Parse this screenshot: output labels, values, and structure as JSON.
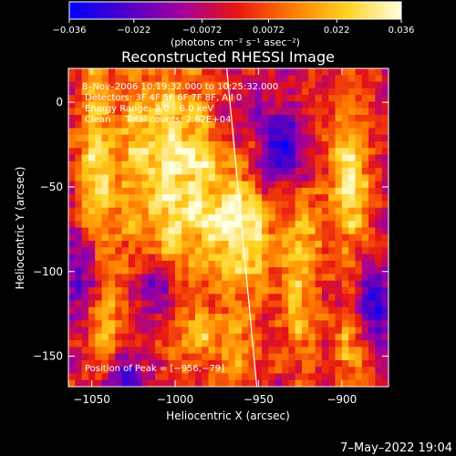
{
  "chart_data": {
    "type": "heatmap",
    "title": "Reconstructed RHESSI Image",
    "xlabel": "Heliocentric X (arcsec)",
    "ylabel": "Heliocentric Y (arcsec)",
    "xlim": [
      -1064,
      -872
    ],
    "ylim": [
      -168,
      20
    ],
    "x_ticks": [
      -1050,
      -1000,
      -950,
      -900
    ],
    "x_tick_labels": [
      "−1050",
      "−1000",
      "−950",
      "−900"
    ],
    "y_ticks": [
      0,
      -50,
      -100,
      -150
    ],
    "y_tick_labels": [
      "0",
      "−50",
      "−100",
      "−150"
    ],
    "colorbar": {
      "range": [
        -0.036,
        0.036
      ],
      "ticks": [
        -0.036,
        -0.022,
        -0.0072,
        0.0072,
        0.022,
        0.036
      ],
      "tick_labels": [
        "−0.036",
        "−0.022",
        "−0.0072",
        "0.0072",
        "0.022",
        "0.036"
      ],
      "units_label": "(photons cm⁻² s⁻¹ asec⁻²)",
      "colors": [
        "#0000ff",
        "#4b00c8",
        "#a000a0",
        "#e61414",
        "#ff7800",
        "#ffd21e",
        "#ffffe1"
      ]
    },
    "info_lines": [
      "8–Nov–2006 10:19:32.000 to 10:25:32.000",
      "Detectors: 3F 4F 5F 6F 7F 8F, All 0",
      "Energy Range: 3.0 – 6.0 keV",
      "Clean     Total counts: 2.62E+04"
    ],
    "peak_label": "Position of Peak = [−956,−79]",
    "peak": {
      "x": -956,
      "y": -79
    },
    "limb_line": [
      [
        -969,
        20
      ],
      [
        -951,
        -168
      ]
    ],
    "blobs": [
      {
        "x": -1047,
        "y": -45,
        "sx": 9,
        "sy": 55,
        "v": 0.03
      },
      {
        "x": -1024,
        "y": -35,
        "sx": 7,
        "sy": 40,
        "v": 0.022
      },
      {
        "x": -1005,
        "y": -45,
        "sx": 10,
        "sy": 55,
        "v": 0.034
      },
      {
        "x": -985,
        "y": -40,
        "sx": 8,
        "sy": 40,
        "v": 0.026
      },
      {
        "x": -960,
        "y": -75,
        "sx": 14,
        "sy": 28,
        "v": 0.04
      },
      {
        "x": -925,
        "y": -95,
        "sx": 8,
        "sy": 45,
        "v": 0.028
      },
      {
        "x": -895,
        "y": -45,
        "sx": 10,
        "sy": 35,
        "v": 0.032
      },
      {
        "x": -985,
        "y": -140,
        "sx": 10,
        "sy": 12,
        "v": 0.022
      },
      {
        "x": -1040,
        "y": -135,
        "sx": 8,
        "sy": 15,
        "v": 0.02
      },
      {
        "x": -960,
        "y": -150,
        "sx": 10,
        "sy": 20,
        "v": 0.018
      },
      {
        "x": -895,
        "y": -145,
        "sx": 8,
        "sy": 18,
        "v": 0.02
      },
      {
        "x": -935,
        "y": -30,
        "sx": 12,
        "sy": 18,
        "v": -0.03
      },
      {
        "x": -1010,
        "y": -110,
        "sx": 8,
        "sy": 15,
        "v": -0.028
      },
      {
        "x": -1055,
        "y": -100,
        "sx": 8,
        "sy": 20,
        "v": -0.024
      },
      {
        "x": -880,
        "y": -120,
        "sx": 8,
        "sy": 18,
        "v": -0.026
      },
      {
        "x": -1030,
        "y": -160,
        "sx": 8,
        "sy": 8,
        "v": -0.022
      }
    ],
    "background": -0.004,
    "noise": 0.007
  },
  "footer": {
    "timestamp": "7–May–2022 19:04"
  }
}
